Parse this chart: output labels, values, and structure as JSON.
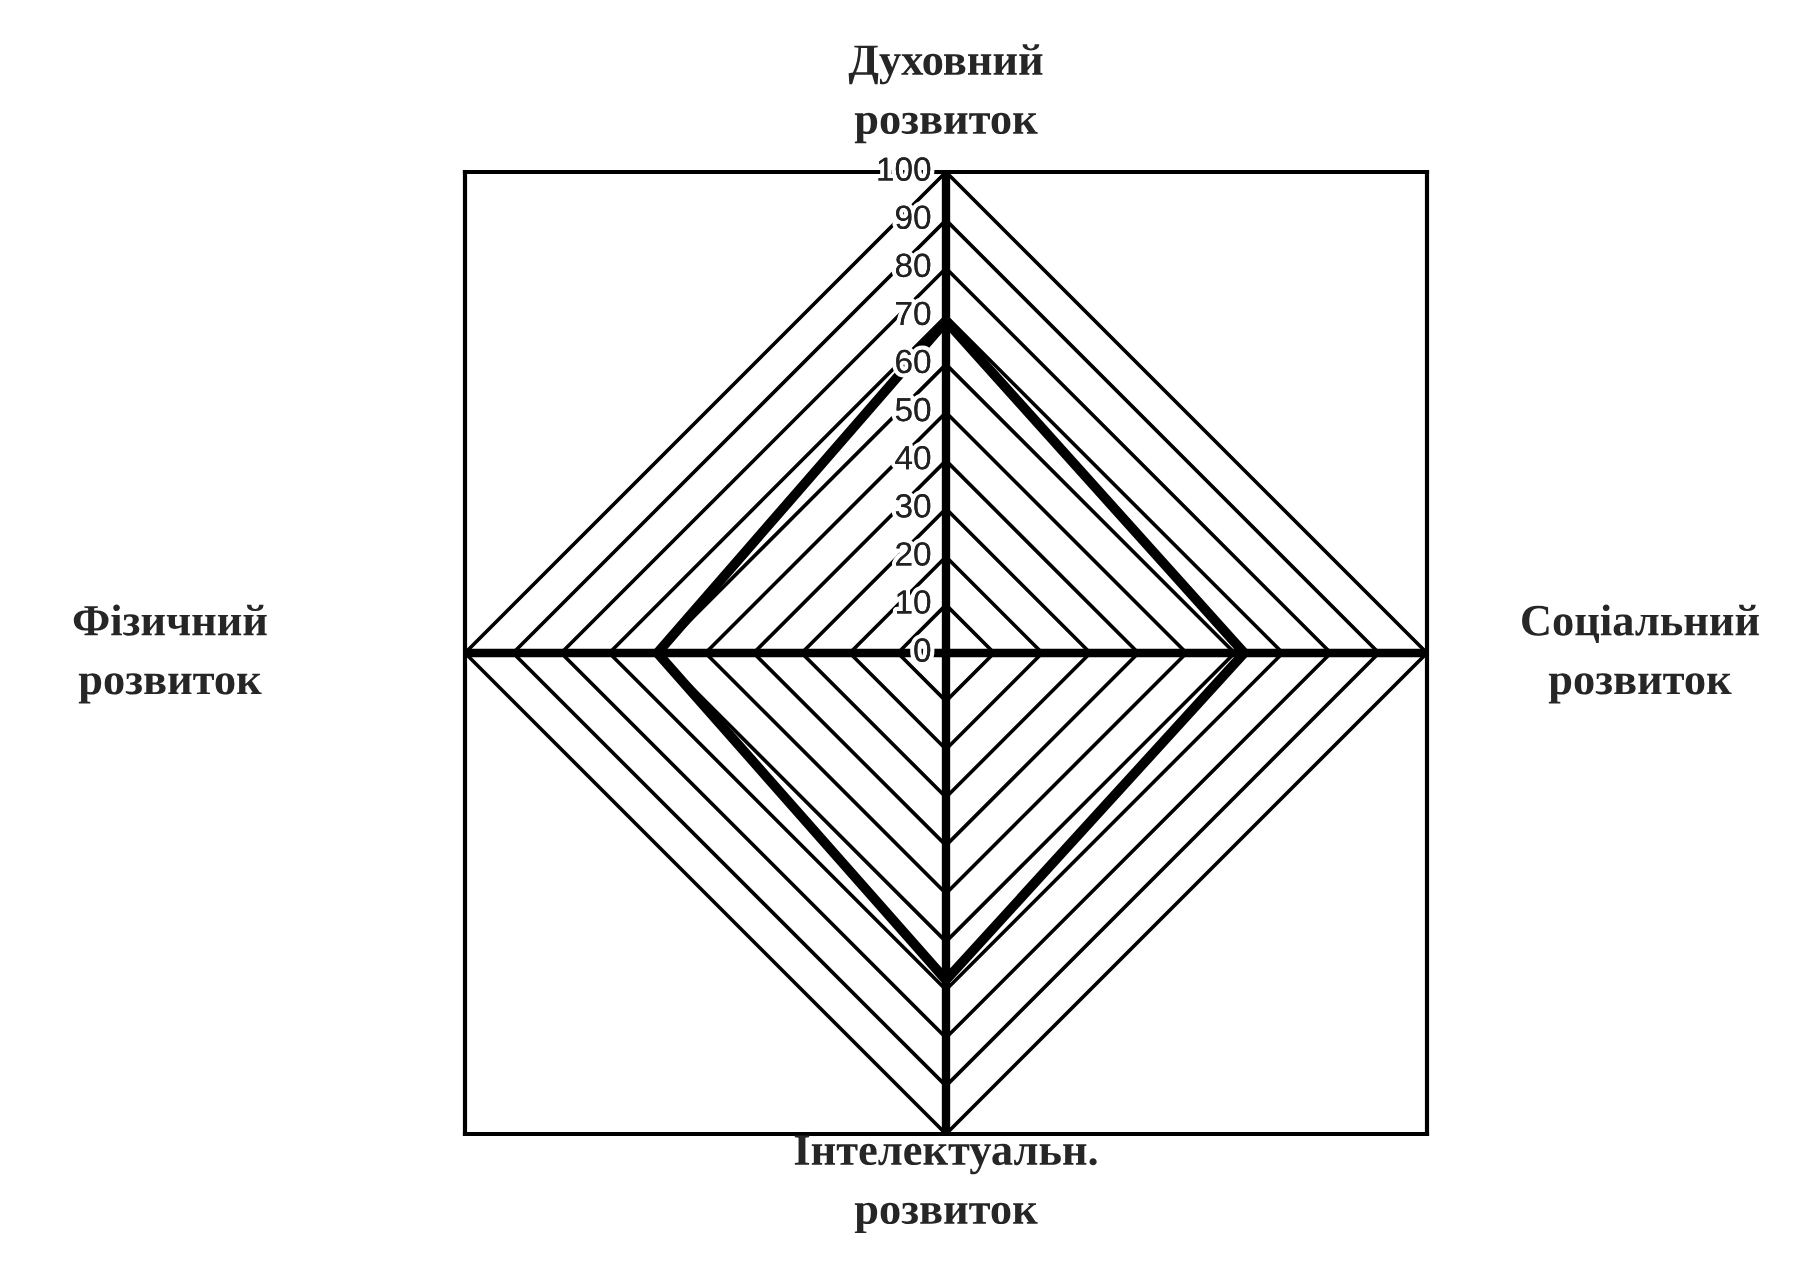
{
  "chart_data": {
    "type": "radar",
    "categories": [
      "Духовний\nрозвиток",
      "Соціальний\nрозвиток",
      "Інтелектуальн.\nрозвиток",
      "Фізичний\nрозвиток"
    ],
    "series": [
      {
        "color": "#000000",
        "values": [
          69,
          62,
          68,
          60
        ]
      }
    ],
    "ylim": [
      0,
      100
    ],
    "yticks": [
      0,
      10,
      20,
      30,
      40,
      50,
      60,
      70,
      80,
      90,
      100
    ],
    "grid": true
  }
}
